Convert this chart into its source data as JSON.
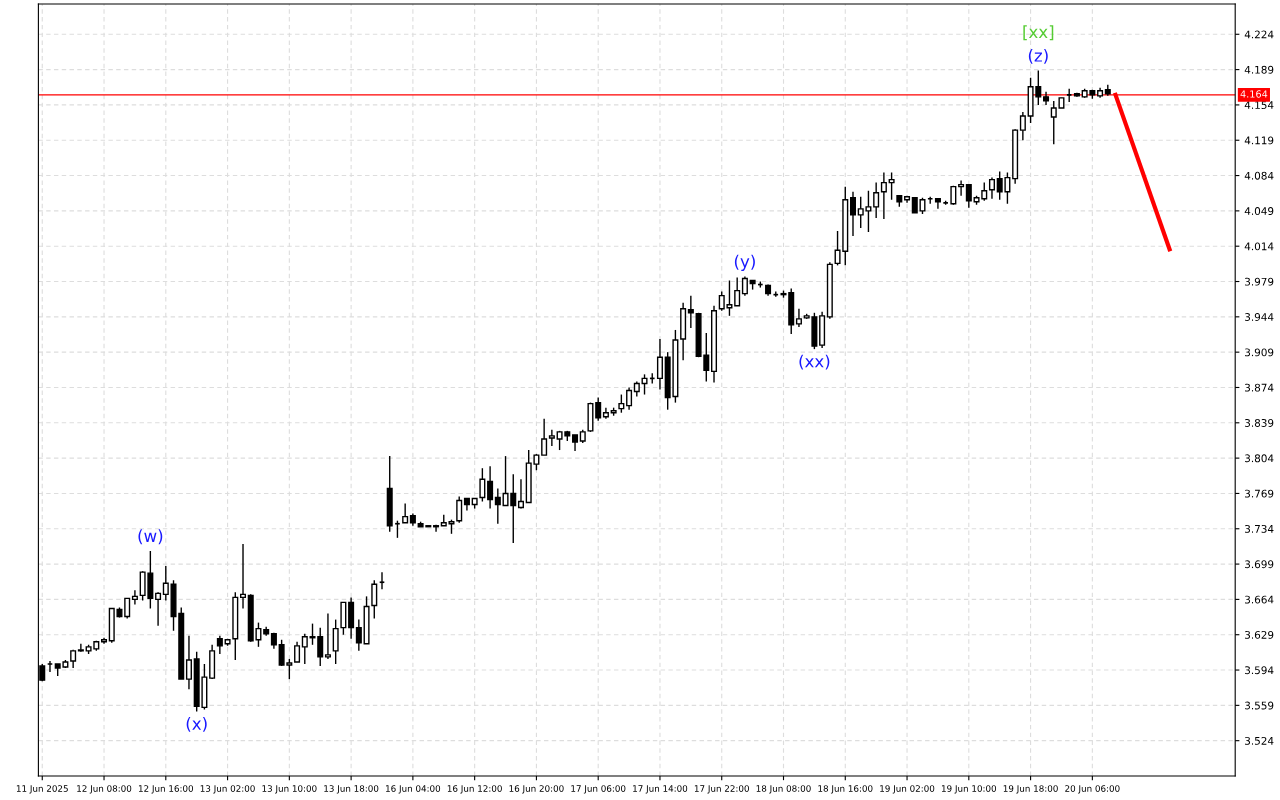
{
  "chart_data": {
    "type": "candlestick",
    "categories": [
      "11 Jun 2025",
      null,
      null,
      null,
      null,
      null,
      null,
      null,
      "12 Jun 08:00",
      null,
      null,
      null,
      null,
      null,
      null,
      null,
      "12 Jun 16:00",
      null,
      null,
      null,
      null,
      null,
      null,
      null,
      "13 Jun 02:00",
      null,
      null,
      null,
      null,
      null,
      null,
      null,
      "13 Jun 10:00",
      null,
      null,
      null,
      null,
      null,
      null,
      null,
      "13 Jun 18:00",
      null,
      null,
      null,
      null,
      null,
      null,
      null,
      "16 Jun 04:00",
      null,
      null,
      null,
      null,
      null,
      null,
      null,
      "16 Jun 12:00",
      null,
      null,
      null,
      null,
      null,
      null,
      null,
      "16 Jun 20:00",
      null,
      null,
      null,
      null,
      null,
      null,
      null,
      "17 Jun 06:00",
      null,
      null,
      null,
      null,
      null,
      null,
      null,
      "17 Jun 14:00",
      null,
      null,
      null,
      null,
      null,
      null,
      null,
      "17 Jun 22:00",
      null,
      null,
      null,
      null,
      null,
      null,
      null,
      "18 Jun 08:00",
      null,
      null,
      null,
      null,
      null,
      null,
      null,
      "18 Jun 16:00",
      null,
      null,
      null,
      null,
      null,
      null,
      null,
      "19 Jun 02:00",
      null,
      null,
      null,
      null,
      null,
      null,
      null,
      "19 Jun 10:00",
      null,
      null,
      null,
      null,
      null,
      null,
      null,
      "19 Jun 18:00",
      null,
      null,
      null,
      null,
      null,
      null,
      null,
      "20 Jun 06:00",
      null,
      null,
      null,
      null,
      null,
      null,
      null,
      null,
      null,
      null,
      null,
      null,
      null,
      null,
      null,
      null,
      null,
      null
    ],
    "ohlc": [
      [
        3.598,
        3.6,
        3.583,
        3.584
      ],
      [
        3.6,
        3.603,
        3.592,
        3.6
      ],
      [
        3.6,
        3.6,
        3.588,
        3.596
      ],
      [
        3.597,
        3.604,
        3.596,
        3.602
      ],
      [
        3.603,
        3.614,
        3.596,
        3.613
      ],
      [
        3.613,
        3.62,
        3.612,
        3.614
      ],
      [
        3.613,
        3.619,
        3.61,
        3.617
      ],
      [
        3.615,
        3.623,
        3.613,
        3.622
      ],
      [
        3.622,
        3.626,
        3.62,
        3.624
      ],
      [
        3.623,
        3.655,
        3.621,
        3.655
      ],
      [
        3.654,
        3.656,
        3.646,
        3.647
      ],
      [
        3.647,
        3.665,
        3.645,
        3.665
      ],
      [
        3.664,
        3.673,
        3.659,
        3.667
      ],
      [
        3.668,
        3.692,
        3.663,
        3.691
      ],
      [
        3.69,
        3.712,
        3.655,
        3.665
      ],
      [
        3.664,
        3.671,
        3.638,
        3.67
      ],
      [
        3.669,
        3.697,
        3.663,
        3.68
      ],
      [
        3.679,
        3.683,
        3.633,
        3.647
      ],
      [
        3.65,
        3.656,
        3.585,
        3.585
      ],
      [
        3.585,
        3.628,
        3.575,
        3.604
      ],
      [
        3.605,
        3.612,
        3.553,
        3.558
      ],
      [
        3.557,
        3.6,
        3.555,
        3.587
      ],
      [
        3.586,
        3.619,
        3.585,
        3.613
      ],
      [
        3.625,
        3.628,
        3.61,
        3.618
      ],
      [
        3.62,
        3.625,
        3.618,
        3.624
      ],
      [
        3.625,
        3.671,
        3.604,
        3.666
      ],
      [
        3.666,
        3.719,
        3.655,
        3.669
      ],
      [
        3.668,
        3.669,
        3.622,
        3.623
      ],
      [
        3.624,
        3.641,
        3.617,
        3.635
      ],
      [
        3.634,
        3.637,
        3.628,
        3.63
      ],
      [
        3.63,
        3.631,
        3.615,
        3.619
      ],
      [
        3.619,
        3.624,
        3.598,
        3.599
      ],
      [
        3.599,
        3.605,
        3.585,
        3.601
      ],
      [
        3.602,
        3.622,
        3.602,
        3.618
      ],
      [
        3.617,
        3.63,
        3.6,
        3.627
      ],
      [
        3.627,
        3.64,
        3.619,
        3.626
      ],
      [
        3.627,
        3.636,
        3.598,
        3.607
      ],
      [
        3.607,
        3.65,
        3.605,
        3.609
      ],
      [
        3.613,
        3.644,
        3.6,
        3.635
      ],
      [
        3.636,
        3.661,
        3.629,
        3.661
      ],
      [
        3.661,
        3.666,
        3.625,
        3.636
      ],
      [
        3.636,
        3.644,
        3.613,
        3.621
      ],
      [
        3.62,
        3.667,
        3.62,
        3.657
      ],
      [
        3.658,
        3.683,
        3.645,
        3.679
      ],
      [
        3.681,
        3.691,
        3.674,
        3.681
      ],
      [
        3.774,
        3.806,
        3.731,
        3.737
      ],
      [
        3.739,
        3.742,
        3.725,
        3.739
      ],
      [
        3.74,
        3.759,
        3.74,
        3.746
      ],
      [
        3.747,
        3.749,
        3.737,
        3.74
      ],
      [
        3.739,
        3.741,
        3.736,
        3.736
      ],
      [
        3.737,
        3.737,
        3.736,
        3.736
      ],
      [
        3.737,
        3.738,
        3.731,
        3.736
      ],
      [
        3.737,
        3.748,
        3.737,
        3.74
      ],
      [
        3.739,
        3.743,
        3.729,
        3.741
      ],
      [
        3.742,
        3.766,
        3.74,
        3.762
      ],
      [
        3.764,
        3.764,
        3.752,
        3.758
      ],
      [
        3.758,
        3.764,
        3.754,
        3.764
      ],
      [
        3.765,
        3.794,
        3.761,
        3.783
      ],
      [
        3.781,
        3.796,
        3.754,
        3.763
      ],
      [
        3.765,
        3.774,
        3.739,
        3.758
      ],
      [
        3.757,
        3.806,
        3.757,
        3.769
      ],
      [
        3.769,
        3.788,
        3.72,
        3.757
      ],
      [
        3.755,
        3.783,
        3.754,
        3.761
      ],
      [
        3.76,
        3.812,
        3.76,
        3.799
      ],
      [
        3.798,
        3.808,
        3.792,
        3.807
      ],
      [
        3.807,
        3.843,
        3.807,
        3.823
      ],
      [
        3.824,
        3.832,
        3.816,
        3.826
      ],
      [
        3.823,
        3.831,
        3.812,
        3.83
      ],
      [
        3.83,
        3.831,
        3.821,
        3.826
      ],
      [
        3.827,
        3.827,
        3.811,
        3.82
      ],
      [
        3.821,
        3.832,
        3.819,
        3.83
      ],
      [
        3.831,
        3.859,
        3.83,
        3.858
      ],
      [
        3.859,
        3.864,
        3.841,
        3.844
      ],
      [
        3.845,
        3.854,
        3.843,
        3.849
      ],
      [
        3.849,
        3.854,
        3.846,
        3.851
      ],
      [
        3.853,
        3.867,
        3.849,
        3.858
      ],
      [
        3.856,
        3.874,
        3.852,
        3.871
      ],
      [
        3.87,
        3.88,
        3.865,
        3.878
      ],
      [
        3.878,
        3.887,
        3.867,
        3.883
      ],
      [
        3.883,
        3.888,
        3.878,
        3.883
      ],
      [
        3.883,
        3.922,
        3.872,
        3.904
      ],
      [
        3.904,
        3.909,
        3.852,
        3.864
      ],
      [
        3.865,
        3.931,
        3.859,
        3.921
      ],
      [
        3.922,
        3.958,
        3.901,
        3.952
      ],
      [
        3.951,
        3.965,
        3.933,
        3.948
      ],
      [
        3.947,
        3.948,
        3.904,
        3.905
      ],
      [
        3.906,
        3.928,
        3.88,
        3.891
      ],
      [
        3.89,
        3.955,
        3.879,
        3.95
      ],
      [
        3.952,
        3.969,
        3.95,
        3.965
      ],
      [
        3.953,
        3.98,
        3.945,
        3.956
      ],
      [
        3.955,
        3.983,
        3.955,
        3.97
      ],
      [
        3.967,
        3.984,
        3.965,
        3.982
      ],
      [
        3.98,
        3.98,
        3.971,
        3.977
      ],
      [
        3.976,
        3.979,
        3.973,
        3.976
      ],
      [
        3.975,
        3.976,
        3.965,
        3.967
      ],
      [
        3.966,
        3.969,
        3.964,
        3.966
      ],
      [
        3.966,
        3.97,
        3.963,
        3.967
      ],
      [
        3.968,
        3.972,
        3.927,
        3.936
      ],
      [
        3.937,
        3.952,
        3.934,
        3.942
      ],
      [
        3.943,
        3.947,
        3.942,
        3.945
      ],
      [
        3.944,
        3.948,
        3.912,
        3.915
      ],
      [
        3.916,
        3.949,
        3.913,
        3.945
      ],
      [
        3.944,
        3.998,
        3.942,
        3.996
      ],
      [
        3.997,
        4.029,
        3.995,
        4.01
      ],
      [
        4.009,
        4.073,
        3.995,
        4.06
      ],
      [
        4.062,
        4.068,
        4.024,
        4.045
      ],
      [
        4.045,
        4.063,
        4.032,
        4.051
      ],
      [
        4.049,
        4.069,
        4.028,
        4.053
      ],
      [
        4.053,
        4.077,
        4.042,
        4.067
      ],
      [
        4.068,
        4.087,
        4.041,
        4.077
      ],
      [
        4.077,
        4.087,
        4.06,
        4.08
      ],
      [
        4.064,
        4.064,
        4.053,
        4.058
      ],
      [
        4.06,
        4.064,
        4.057,
        4.063
      ],
      [
        4.062,
        4.062,
        4.047,
        4.047
      ],
      [
        4.049,
        4.062,
        4.046,
        4.06
      ],
      [
        4.061,
        4.063,
        4.056,
        4.061
      ],
      [
        4.061,
        4.061,
        4.051,
        4.058
      ],
      [
        4.057,
        4.059,
        4.055,
        4.057
      ],
      [
        4.056,
        4.074,
        4.055,
        4.073
      ],
      [
        4.073,
        4.079,
        4.064,
        4.075
      ],
      [
        4.075,
        4.075,
        4.052,
        4.059
      ],
      [
        4.058,
        4.064,
        4.055,
        4.062
      ],
      [
        4.061,
        4.077,
        4.059,
        4.069
      ],
      [
        4.07,
        4.082,
        4.061,
        4.08
      ],
      [
        4.081,
        4.088,
        4.06,
        4.068
      ],
      [
        4.068,
        4.087,
        4.056,
        4.082
      ],
      [
        4.081,
        4.13,
        4.076,
        4.129
      ],
      [
        4.129,
        4.147,
        4.119,
        4.143
      ],
      [
        4.143,
        4.181,
        4.136,
        4.172
      ],
      [
        4.172,
        4.188,
        4.154,
        4.162
      ],
      [
        4.162,
        4.167,
        4.154,
        4.158
      ],
      [
        4.142,
        4.158,
        4.115,
        4.151
      ],
      [
        4.151,
        4.161,
        4.151,
        4.161
      ],
      [
        4.164,
        4.17,
        4.157,
        4.164
      ],
      [
        4.165,
        4.166,
        4.162,
        4.163
      ],
      [
        4.162,
        4.17,
        4.161,
        4.168
      ],
      [
        4.168,
        4.169,
        4.16,
        4.164
      ],
      [
        4.163,
        4.171,
        4.161,
        4.168
      ],
      [
        4.169,
        4.174,
        4.163,
        4.165
      ],
      null,
      null,
      null,
      null,
      null,
      null,
      null,
      null,
      null,
      null,
      null,
      null,
      null,
      null,
      null,
      null
    ],
    "series": [
      {
        "type": "line",
        "color": "#ff0000",
        "values": [
          null,
          null,
          null,
          null,
          null,
          null,
          null,
          null,
          null,
          null,
          null,
          null,
          null,
          null,
          null,
          null,
          null,
          null,
          null,
          null,
          null,
          null,
          null,
          null,
          null,
          null,
          null,
          null,
          null,
          null,
          null,
          null,
          null,
          null,
          null,
          null,
          null,
          null,
          null,
          null,
          null,
          null,
          null,
          null,
          null,
          null,
          null,
          null,
          null,
          null,
          null,
          null,
          null,
          null,
          null,
          null,
          null,
          null,
          null,
          null,
          null,
          null,
          null,
          null,
          null,
          null,
          null,
          null,
          null,
          null,
          null,
          null,
          null,
          null,
          null,
          null,
          null,
          null,
          null,
          null,
          null,
          null,
          null,
          null,
          null,
          null,
          null,
          null,
          null,
          null,
          null,
          null,
          null,
          null,
          null,
          null,
          null,
          null,
          null,
          null,
          null,
          null,
          null,
          null,
          null,
          null,
          null,
          null,
          null,
          null,
          null,
          null,
          null,
          null,
          null,
          null,
          null,
          null,
          null,
          null,
          null,
          null,
          null,
          null,
          null,
          null,
          null,
          null,
          null,
          null,
          null,
          null,
          null,
          null,
          null,
          null,
          null,
          null,
          null,
          4.164,
          null,
          null,
          null,
          null,
          null,
          null,
          4.011,
          null,
          null,
          null,
          null,
          null,
          null,
          null,
          null
        ]
      }
    ],
    "ylim": [
      3.489,
      4.254
    ],
    "yticks": [
      3.524,
      3.559,
      3.594,
      3.629,
      3.664,
      3.699,
      3.734,
      3.769,
      3.804,
      3.839,
      3.874,
      3.909,
      3.944,
      3.979,
      4.014,
      4.049,
      4.084,
      4.119,
      4.154,
      4.189,
      4.224
    ],
    "grid": true,
    "ref_lines": [
      {
        "axis": "y",
        "value": 4.164,
        "label": "4.164",
        "color": "#ff0000"
      }
    ],
    "annotations": [
      {
        "text": "(w)",
        "y": 3.712
      },
      {
        "text": "(x)",
        "y": 3.553
      },
      {
        "text": "(y)",
        "y": 3.984
      },
      {
        "text": "(xx)",
        "y": 3.912
      },
      {
        "text": "(z)",
        "y": 4.188
      },
      {
        "text": "[xx]",
        "y": 4.188
      }
    ]
  }
}
